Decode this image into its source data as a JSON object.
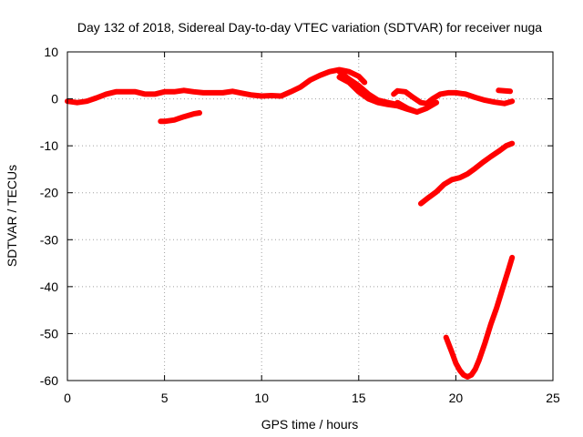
{
  "chart_data": {
    "type": "line",
    "title": "Day 132 of 2018, Sidereal Day-to-day VTEC variation (SDTVAR) for receiver nuga",
    "xlabel": "GPS time / hours",
    "ylabel": "SDTVAR / TECUs",
    "xlim": [
      0,
      25
    ],
    "ylim": [
      -60,
      10
    ],
    "xticks": [
      0,
      5,
      10,
      15,
      20,
      25
    ],
    "yticks": [
      10,
      0,
      -10,
      -20,
      -30,
      -40,
      -50,
      -60
    ],
    "grid": true,
    "legend": "none",
    "series_color": "#ff0000",
    "series": [
      {
        "name": "main trace",
        "x": [
          0,
          0.5,
          1.0,
          1.5,
          2.0,
          2.5,
          3.0,
          3.5,
          4.0,
          4.5,
          5.0,
          5.5,
          6.0,
          6.5,
          7.0,
          7.5,
          8.0,
          8.5,
          9.0,
          9.5,
          10.0,
          10.5,
          11.0,
          11.5,
          12.0,
          12.5,
          13.0,
          13.5,
          14.0,
          14.5,
          15.0,
          15.3
        ],
        "y": [
          -0.5,
          -0.8,
          -0.5,
          0.2,
          1.0,
          1.5,
          1.5,
          1.5,
          1.0,
          1.0,
          1.5,
          1.5,
          1.8,
          1.5,
          1.3,
          1.3,
          1.3,
          1.6,
          1.2,
          0.8,
          0.6,
          0.7,
          0.6,
          1.5,
          2.5,
          4.0,
          5.0,
          5.8,
          6.2,
          5.8,
          4.8,
          3.5
        ]
      },
      {
        "name": "descending branch upper",
        "x": [
          14.0,
          14.5,
          15.0,
          15.5,
          16.0,
          16.5,
          17.0
        ],
        "y": [
          5.8,
          4.2,
          2.8,
          1.0,
          -0.3,
          -0.8,
          -1.2
        ]
      },
      {
        "name": "descending branch lower",
        "x": [
          14.0,
          14.5,
          15.0,
          15.5,
          16.0,
          16.5,
          17.0,
          17.5,
          18.0
        ],
        "y": [
          4.6,
          3.5,
          1.5,
          0.0,
          -0.8,
          -1.2,
          -1.5,
          -2.2,
          -2.8
        ]
      },
      {
        "name": "afternoon trace a",
        "x": [
          16.8,
          17.0,
          17.4,
          17.8,
          18.2,
          18.5,
          18.8,
          19.2,
          19.6,
          20.0,
          20.5,
          21.0,
          21.5,
          22.0,
          22.5,
          22.9
        ],
        "y": [
          1.0,
          1.7,
          1.5,
          0.3,
          -0.8,
          -1.0,
          0.0,
          1.0,
          1.3,
          1.3,
          1.0,
          0.3,
          -0.3,
          -0.7,
          -1.0,
          -0.5
        ]
      },
      {
        "name": "afternoon trace b",
        "x": [
          17.0,
          17.5,
          18.0,
          18.5,
          19.0
        ],
        "y": [
          -0.8,
          -2.0,
          -2.8,
          -2.0,
          -0.8
        ]
      },
      {
        "name": "late segment",
        "x": [
          22.2,
          22.8
        ],
        "y": [
          1.8,
          1.6
        ]
      },
      {
        "name": "short negative segment",
        "x": [
          4.8,
          5.0,
          5.5,
          6.0,
          6.5,
          6.8
        ],
        "y": [
          -4.8,
          -4.8,
          -4.5,
          -3.8,
          -3.2,
          -3.0
        ]
      },
      {
        "name": "rising segment",
        "x": [
          18.2,
          18.6,
          19.0,
          19.4,
          19.8,
          20.2,
          20.6,
          21.0,
          21.4,
          21.8,
          22.2,
          22.6,
          22.9
        ],
        "y": [
          -22.3,
          -21.0,
          -19.8,
          -18.2,
          -17.2,
          -16.8,
          -16.0,
          -14.8,
          -13.5,
          -12.3,
          -11.2,
          -10.0,
          -9.5
        ]
      },
      {
        "name": "deep dip",
        "x": [
          19.5,
          19.8,
          20.0,
          20.2,
          20.4,
          20.6,
          20.8,
          21.0,
          21.2,
          21.5,
          21.8,
          22.1,
          22.4,
          22.7,
          22.9
        ],
        "y": [
          -50.8,
          -54.0,
          -56.3,
          -57.8,
          -58.8,
          -59.2,
          -58.8,
          -57.6,
          -55.6,
          -52.0,
          -48.0,
          -44.5,
          -40.5,
          -36.5,
          -33.8
        ]
      }
    ]
  }
}
